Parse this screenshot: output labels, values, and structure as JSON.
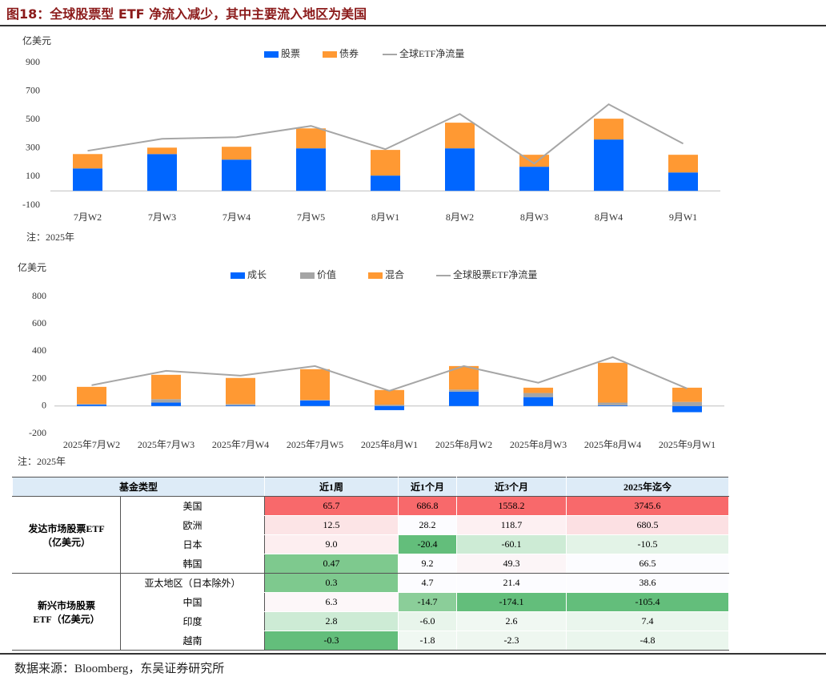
{
  "title": "图18：全球股票型 ETF 净流入减少，其中主要流入地区为美国",
  "chart_data": [
    {
      "type": "bar",
      "stacked": true,
      "unit_label": "亿美元",
      "note": "注：2025年",
      "categories": [
        "7月W2",
        "7月W3",
        "7月W4",
        "7月W5",
        "8月W1",
        "8月W2",
        "8月W3",
        "8月W4",
        "9月W1"
      ],
      "series": [
        {
          "name": "股票",
          "color": "#0066ff",
          "values": [
            157,
            258,
            219,
            298,
            107,
            298,
            169,
            360,
            129
          ]
        },
        {
          "name": "债券",
          "color": "#ff9933",
          "values": [
            101,
            45,
            90,
            140,
            180,
            180,
            84,
            146,
            124
          ]
        },
        {
          "name": "全球ETF净流量",
          "type": "line",
          "color": "#a6a6a6",
          "values": [
            281,
            365,
            376,
            455,
            292,
            539,
            191,
            607,
            331
          ]
        }
      ],
      "ylim": [
        -100,
        900
      ],
      "yticks": [
        -100,
        100,
        300,
        500,
        700,
        900
      ]
    },
    {
      "type": "bar",
      "stacked": true,
      "unit_label": "亿美元",
      "note": "注：2025年",
      "categories": [
        "2025年7月W2",
        "2025年7月W3",
        "2025年7月W4",
        "2025年7月W5",
        "2025年8月W1",
        "2025年8月W2",
        "2025年8月W3",
        "2025年8月W4",
        "2025年9月W1"
      ],
      "series": [
        {
          "name": "成长",
          "color": "#0066ff",
          "values": [
            10,
            25,
            5,
            40,
            -30,
            105,
            65,
            5,
            -45
          ]
        },
        {
          "name": "价值",
          "color": "#a5a5a5",
          "values": [
            5,
            25,
            10,
            5,
            10,
            15,
            30,
            20,
            30
          ]
        },
        {
          "name": "混合",
          "color": "#ff9933",
          "values": [
            125,
            178,
            190,
            224,
            107,
            172,
            39,
            291,
            104
          ]
        },
        {
          "name": "全球股票ETF净流量",
          "type": "line",
          "color": "#a6a6a6",
          "values": [
            152,
            257,
            222,
            292,
            111,
            292,
            170,
            357,
            128
          ]
        }
      ],
      "ylim": [
        -200,
        800
      ],
      "yticks": [
        -200,
        0,
        200,
        400,
        600,
        800
      ]
    }
  ],
  "table": {
    "header": [
      "基金类型",
      "近1周",
      "近1个月",
      "近3个月",
      "2025年迄今"
    ],
    "groups": [
      {
        "lines": [
          "发达市场股票ETF",
          "（亿美元）"
        ],
        "rows": [
          {
            "region": "美国",
            "values": [
              "65.7",
              "686.8",
              "1558.2",
              "3745.6"
            ],
            "colors": [
              "#f8696b",
              "#f8696b",
              "#f8696b",
              "#f8696b"
            ]
          },
          {
            "region": "欧洲",
            "values": [
              "12.5",
              "28.2",
              "118.7",
              "680.5"
            ],
            "colors": [
              "#fce4e6",
              "#fcfcff",
              "#fdf0f2",
              "#fce0e3"
            ]
          },
          {
            "region": "日本",
            "values": [
              "9.0",
              "-20.4",
              "-60.1",
              "-10.5"
            ],
            "colors": [
              "#fdeef0",
              "#63be7b",
              "#cdebd5",
              "#e3f3e7"
            ]
          },
          {
            "region": "韩国",
            "values": [
              "0.47",
              "9.2",
              "49.3",
              "66.5"
            ],
            "colors": [
              "#7ec98e",
              "#fcfcff",
              "#fcf5f7",
              "#fcfcff"
            ]
          }
        ]
      },
      {
        "lines": [
          "新兴市场股票",
          "ETF（亿美元）"
        ],
        "rows": [
          {
            "region": "亚太地区（日本除外）",
            "values": [
              "0.3",
              "4.7",
              "21.4",
              "38.6"
            ],
            "colors": [
              "#7ec98e",
              "#fcfcff",
              "#fcfcff",
              "#fcfcff"
            ]
          },
          {
            "region": "中国",
            "values": [
              "6.3",
              "-14.7",
              "-174.1",
              "-105.4"
            ],
            "colors": [
              "#fdf7f9",
              "#8bce99",
              "#63be7b",
              "#63be7b"
            ]
          },
          {
            "region": "印度",
            "values": [
              "2.8",
              "-6.0",
              "2.6",
              "7.4"
            ],
            "colors": [
              "#cdebd5",
              "#e8f5eb",
              "#f0f8f2",
              "#eaf6ed"
            ]
          },
          {
            "region": "越南",
            "values": [
              "-0.3",
              "-1.8",
              "-2.3",
              "-4.8"
            ],
            "colors": [
              "#63be7b",
              "#f0f8f2",
              "#eef7f0",
              "#eaf6ed"
            ]
          }
        ]
      }
    ]
  },
  "source": "数据来源：Bloomberg，东吴证券研究所"
}
